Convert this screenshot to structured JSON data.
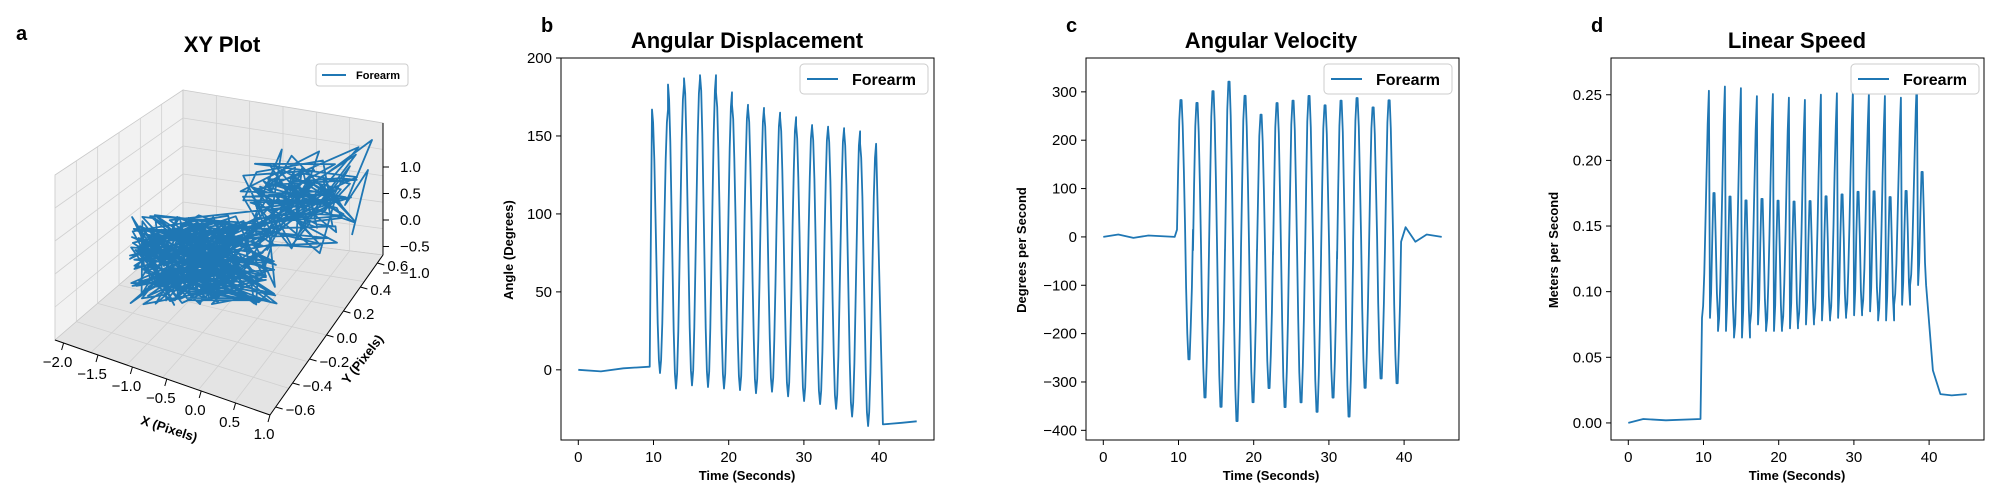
{
  "colors": {
    "series": "#1f77b4",
    "axis": "#000000",
    "pane": "#f2f2f2",
    "grid": "#d0d0d0"
  },
  "chart_data": [
    {
      "panel": "a",
      "type": "line3d",
      "title": "XY Plot",
      "xlabel": "X (Pixels)",
      "ylabel": "Y (Pixels)",
      "zlabel": "",
      "xlim": [
        -2.3,
        1.2
      ],
      "ylim": [
        -0.7,
        0.65
      ],
      "zlim": [
        -1.4,
        1.4
      ],
      "xticks": [
        "−2.0",
        "−1.5",
        "−1.0",
        "−0.5",
        "0.0",
        "0.5",
        "1.0"
      ],
      "yticks": [
        "−0.6",
        "−0.4",
        "−0.2",
        "0.0",
        "0.2",
        "0.4",
        "0.6"
      ],
      "zticks": [
        "−1.0",
        "−0.5",
        "0.0",
        "0.5",
        "1.0"
      ],
      "legend": "upper-right",
      "series": [
        {
          "name": "Forearm"
        }
      ]
    },
    {
      "panel": "b",
      "type": "line",
      "title": "Angular Displacement",
      "xlabel": "Time (Seconds)",
      "ylabel": "Angle (Degrees)",
      "xlim": [
        -2.3,
        47.3
      ],
      "ylim": [
        -45,
        200
      ],
      "xticks": [
        "0",
        "10",
        "20",
        "30",
        "40"
      ],
      "yticks": [
        "0",
        "50",
        "100",
        "150",
        "200"
      ],
      "legend": "upper-right",
      "series": [
        {
          "name": "Forearm"
        }
      ],
      "trace": {
        "baseline_before": [
          [
            0,
            0
          ],
          [
            3,
            -1
          ],
          [
            6,
            1
          ],
          [
            9.5,
            2
          ]
        ],
        "onset": 9.8,
        "offset": 39.6,
        "cycle_period": 2.04,
        "peaks": [
          167,
          183,
          187,
          189,
          178,
          170,
          168,
          165,
          162,
          157,
          156,
          155,
          153,
          145
        ],
        "troughs": [
          -2,
          -12,
          -10,
          -11,
          -12,
          -13,
          -15,
          -14,
          -17,
          -20,
          -22,
          -25,
          -30,
          -36
        ],
        "baseline_after": [
          [
            40.5,
            -35
          ],
          [
            43,
            -34
          ],
          [
            45,
            -33
          ]
        ]
      }
    },
    {
      "panel": "c",
      "type": "line",
      "title": "Angular Velocity",
      "xlabel": "Time (Seconds)",
      "ylabel": "Degrees per Second",
      "xlim": [
        -2.3,
        47.3
      ],
      "ylim": [
        -420,
        370
      ],
      "xticks": [
        "0",
        "10",
        "20",
        "30",
        "40"
      ],
      "yticks": [
        "−400",
        "−300",
        "−200",
        "−100",
        "0",
        "100",
        "200",
        "300"
      ],
      "legend": "upper-right",
      "series": [
        {
          "name": "Forearm"
        }
      ],
      "trace": {
        "baseline_before": [
          [
            0,
            0
          ],
          [
            2,
            5
          ],
          [
            4,
            -2
          ],
          [
            6,
            3
          ],
          [
            9.5,
            0
          ]
        ],
        "onset": 9.8,
        "offset": 39.6,
        "cycle_period": 2.04,
        "peaks": [
          290,
          285,
          310,
          330,
          300,
          260,
          285,
          290,
          300,
          280,
          290,
          295,
          275,
          290
        ],
        "troughs": [
          -260,
          -340,
          -360,
          -390,
          -350,
          -320,
          -360,
          -350,
          -370,
          -340,
          -380,
          -320,
          -300,
          -310
        ],
        "baseline_after": [
          [
            40.2,
            20
          ],
          [
            41.5,
            -10
          ],
          [
            43,
            5
          ],
          [
            45,
            0
          ]
        ]
      }
    },
    {
      "panel": "d",
      "type": "line",
      "title": "Linear Speed",
      "xlabel": "Time (Seconds)",
      "ylabel": "Meters per Second",
      "xlim": [
        -2.3,
        47.3
      ],
      "ylim": [
        -0.013,
        0.278
      ],
      "xticks": [
        "0",
        "10",
        "20",
        "30",
        "40"
      ],
      "yticks": [
        "0.00",
        "0.05",
        "0.10",
        "0.15",
        "0.20",
        "0.25"
      ],
      "legend": "upper-right",
      "series": [
        {
          "name": "Forearm"
        }
      ],
      "trace": {
        "baseline_before": [
          [
            0,
            0.0
          ],
          [
            2,
            0.003
          ],
          [
            5,
            0.002
          ],
          [
            9.6,
            0.003
          ]
        ],
        "onset": 9.8,
        "offset": 39.6,
        "cycle_period": 2.04,
        "peaks": [
          0.262,
          0.266,
          0.265,
          0.258,
          0.26,
          0.257,
          0.255,
          0.259,
          0.26,
          0.262,
          0.26,
          0.258,
          0.256,
          0.27
        ],
        "troughs": [
          0.08,
          0.07,
          0.065,
          0.075,
          0.07,
          0.072,
          0.075,
          0.078,
          0.08,
          0.082,
          0.085,
          0.078,
          0.09,
          0.105
        ],
        "baseline_after": [
          [
            40.5,
            0.04
          ],
          [
            41.5,
            0.022
          ],
          [
            43,
            0.021
          ],
          [
            45,
            0.022
          ]
        ]
      }
    }
  ]
}
